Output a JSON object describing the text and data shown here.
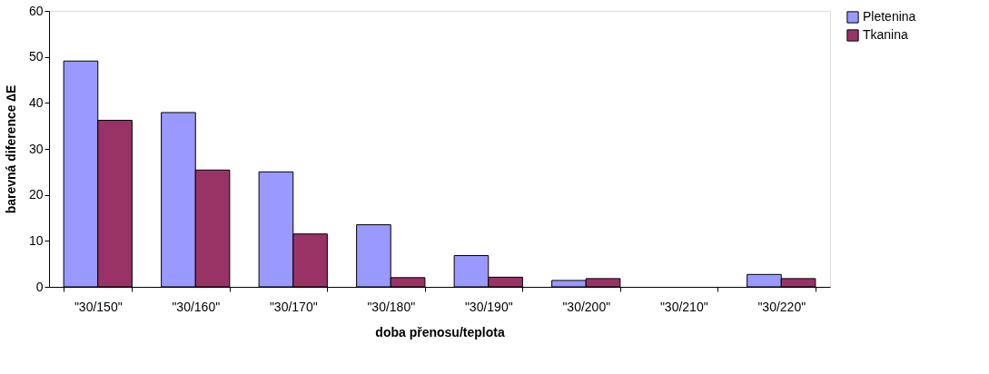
{
  "chart_data": {
    "type": "bar",
    "xlabel": "doba přenosu/teplota",
    "ylabel": "barevná diference ∆E",
    "categories": [
      "\"30/150\"",
      "\"30/160\"",
      "\"30/170\"",
      "\"30/180\"",
      "\"30/190\"",
      "\"30/200\"",
      "\"30/210\"",
      "\"30/220\""
    ],
    "series": [
      {
        "name": "Pletenina",
        "color": "#9999ff",
        "values": [
          49.1,
          37.9,
          25.0,
          13.5,
          6.8,
          1.4,
          null,
          2.7
        ]
      },
      {
        "name": "Tkanina",
        "color": "#993366",
        "values": [
          36.2,
          25.4,
          11.5,
          2.0,
          2.1,
          1.8,
          null,
          1.8
        ]
      }
    ],
    "ylim": [
      0,
      60
    ],
    "yticks": [
      0,
      10,
      20,
      30,
      40,
      50,
      60
    ],
    "grid": false,
    "legend": "right"
  }
}
